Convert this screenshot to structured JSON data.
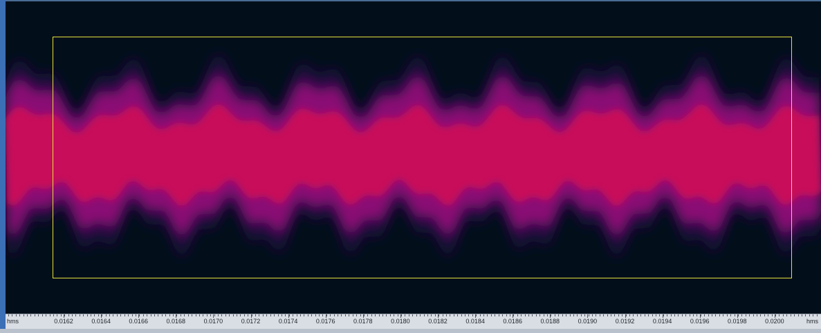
{
  "colors": {
    "background": "#020f1a",
    "energy_high": "#c8105a",
    "energy_mid": "#8a0f74",
    "energy_low": "#1a0a3a",
    "selection": "#e8e23a",
    "ruler_bg": "#d9dde4"
  },
  "ruler": {
    "unit_left": "hms",
    "unit_right": "hms",
    "ticks": [
      "0.0162",
      "0.0164",
      "0.0166",
      "0.0168",
      "0.0170",
      "0.0172",
      "0.0174",
      "0.0176",
      "0.0178",
      "0.0180",
      "0.0182",
      "0.0184",
      "0.0186",
      "0.0188",
      "0.0190",
      "0.0192",
      "0.0194",
      "0.0196",
      "0.0198",
      "0.0200"
    ]
  }
}
